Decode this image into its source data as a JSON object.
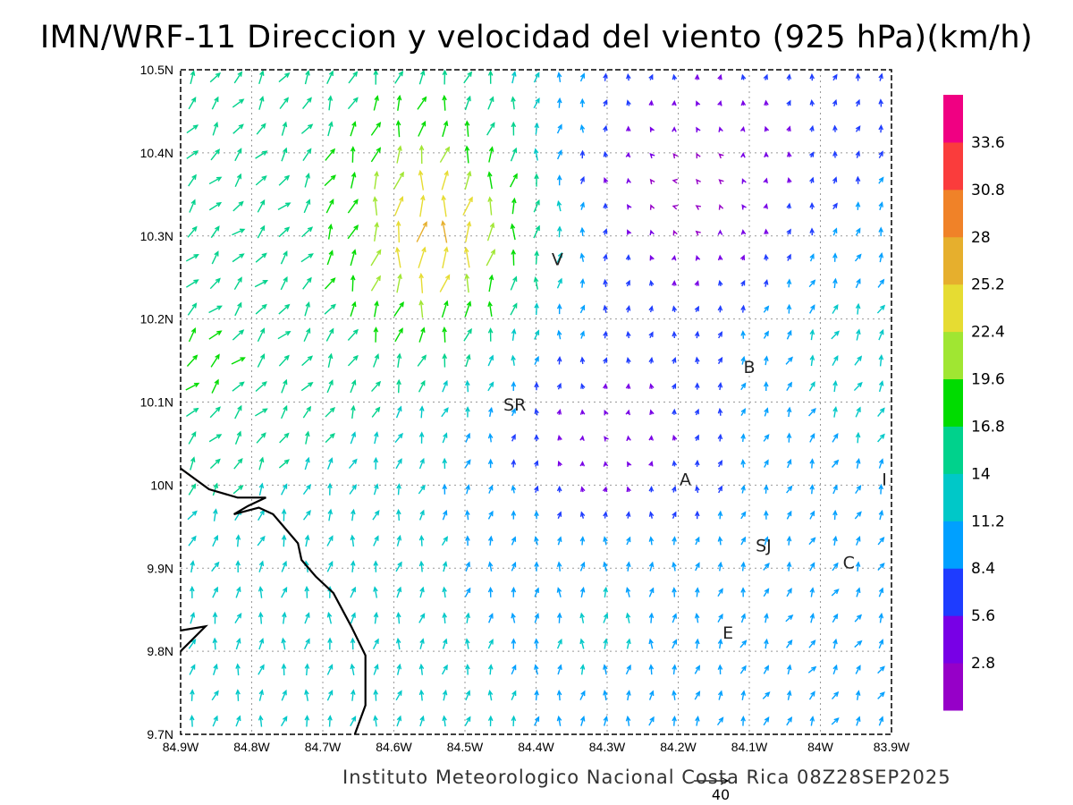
{
  "title": "IMN/WRF-11 Direccion y velocidad del viento (925 hPa)(km/h)",
  "footer": "Instituto Meteorologico Nacional Costa Rica 08Z28SEP2025",
  "reference_vector": {
    "value": 40,
    "label": "40"
  },
  "map": {
    "lon_range": [
      -84.9,
      -83.9
    ],
    "lat_range": [
      9.7,
      10.5
    ],
    "grid": true,
    "x_tick_labels": [
      "84.9W",
      "84.8W",
      "84.7W",
      "84.6W",
      "84.5W",
      "84.4W",
      "84.3W",
      "84.2W",
      "84.1W",
      "84W",
      "83.9W"
    ],
    "y_tick_labels": [
      "9.7N",
      "9.8N",
      "9.9N",
      "10N",
      "10.1N",
      "10.2N",
      "10.3N",
      "10.4N",
      "10.5N"
    ],
    "places": [
      {
        "label": "V",
        "lon": -84.37,
        "lat": 10.265
      },
      {
        "label": "B",
        "lon": -84.1,
        "lat": 10.135
      },
      {
        "label": "SR",
        "lon": -84.43,
        "lat": 10.09
      },
      {
        "label": "A",
        "lon": -84.19,
        "lat": 10.0
      },
      {
        "label": "I",
        "lon": -83.91,
        "lat": 10.0
      },
      {
        "label": "SJ",
        "lon": -84.08,
        "lat": 9.92
      },
      {
        "label": "C",
        "lon": -83.96,
        "lat": 9.9
      },
      {
        "label": "E",
        "lon": -84.13,
        "lat": 9.815
      }
    ],
    "coastline": [
      [
        -84.9,
        10.02
      ],
      [
        -84.86,
        9.995
      ],
      [
        -84.82,
        9.985
      ],
      [
        -84.78,
        9.985
      ],
      [
        -84.805,
        9.975
      ],
      [
        -84.825,
        9.965
      ],
      [
        -84.79,
        9.973
      ],
      [
        -84.77,
        9.965
      ],
      [
        -84.75,
        9.945
      ],
      [
        -84.735,
        9.93
      ],
      [
        -84.73,
        9.91
      ],
      [
        -84.71,
        9.89
      ],
      [
        -84.685,
        9.87
      ],
      [
        -84.66,
        9.83
      ],
      [
        -84.64,
        9.795
      ],
      [
        -84.64,
        9.735
      ],
      [
        -84.655,
        9.7
      ]
    ],
    "coastline2": [
      [
        -84.9,
        9.825
      ],
      [
        -84.865,
        9.83
      ],
      [
        -84.9,
        9.8
      ]
    ]
  },
  "colorbar": {
    "labels": [
      "2.8",
      "5.6",
      "8.4",
      "11.2",
      "14",
      "16.8",
      "19.6",
      "22.4",
      "25.2",
      "28",
      "30.8",
      "33.6"
    ],
    "colors": [
      "#9600c8",
      "#7800e6",
      "#1e3cff",
      "#00a0ff",
      "#00c8c8",
      "#00d28c",
      "#00dc00",
      "#a0e632",
      "#e6dc32",
      "#e6af2d",
      "#f08228",
      "#fa3c3c",
      "#f00082"
    ]
  },
  "wind_field": {
    "units": "km/h",
    "regions": [
      {
        "name": "nw",
        "lon": -84.8,
        "lat": 10.3,
        "u": 12,
        "v": 10,
        "w": 0.8
      },
      {
        "name": "nw2",
        "lon": -84.85,
        "lat": 10.15,
        "u": 13,
        "v": 12,
        "w": 0.8
      },
      {
        "name": "jet",
        "lon": -84.55,
        "lat": 10.3,
        "u": 2,
        "v": 30,
        "w": 0.6
      },
      {
        "name": "north-calm",
        "lon": -84.2,
        "lat": 10.35,
        "u": -3,
        "v": -1,
        "w": 0.6
      },
      {
        "name": "center-calm",
        "lon": -84.3,
        "lat": 10.05,
        "u": -2,
        "v": 1,
        "w": 0.6
      },
      {
        "name": "southwest",
        "lon": -84.7,
        "lat": 9.85,
        "u": 1,
        "v": 13,
        "w": 0.7
      },
      {
        "name": "south",
        "lon": -84.3,
        "lat": 9.85,
        "u": 0,
        "v": 12,
        "w": 0.7
      },
      {
        "name": "east",
        "lon": -83.95,
        "lat": 10.15,
        "u": 6,
        "v": 12,
        "w": 0.6
      },
      {
        "name": "se",
        "lon": -84.0,
        "lat": 9.8,
        "u": 6,
        "v": 9,
        "w": 0.6
      }
    ]
  }
}
